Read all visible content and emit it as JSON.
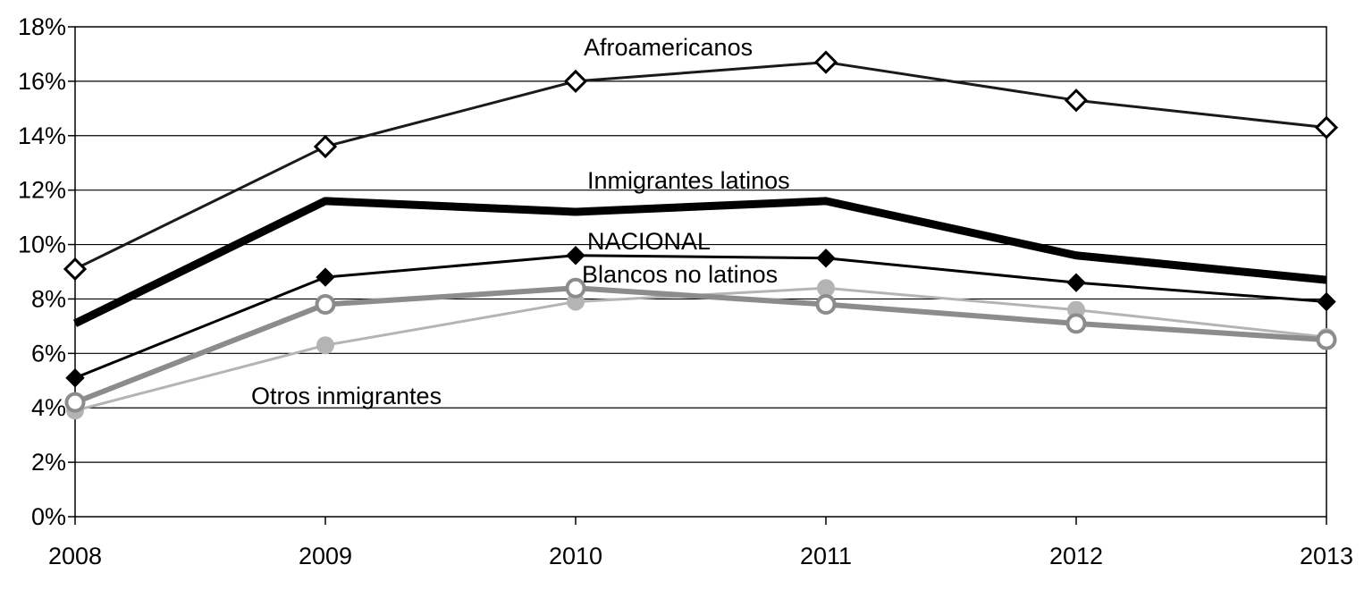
{
  "chart_data": {
    "type": "line",
    "title": "",
    "xlabel": "",
    "ylabel": "",
    "x": [
      "2008",
      "2009",
      "2010",
      "2011",
      "2012",
      "2013"
    ],
    "ylim": [
      0,
      18
    ],
    "yticks": [
      0,
      2,
      4,
      6,
      8,
      10,
      12,
      14,
      16,
      18
    ],
    "ytick_labels": [
      "0%",
      "2%",
      "4%",
      "6%",
      "8%",
      "10%",
      "12%",
      "14%",
      "16%",
      "18%"
    ],
    "grid": "horizontal",
    "legend": "inline labels",
    "series": [
      {
        "name": "Afroamericanos",
        "values": [
          9.1,
          13.6,
          16.0,
          16.7,
          15.3,
          14.3
        ],
        "color": "#1a1a1a",
        "marker": "open-diamond",
        "line": "thin"
      },
      {
        "name": "Inmigrantes latinos",
        "values": [
          7.1,
          11.6,
          11.2,
          11.6,
          9.6,
          8.7
        ],
        "color": "#000000",
        "marker": "none",
        "line": "thick"
      },
      {
        "name": "NACIONAL",
        "values": [
          5.1,
          8.8,
          9.6,
          9.5,
          8.6,
          7.9
        ],
        "color": "#000000",
        "marker": "filled-diamond",
        "line": "thin"
      },
      {
        "name": "Blancos no latinos",
        "values": [
          4.2,
          7.8,
          8.4,
          7.8,
          7.1,
          6.5
        ],
        "color": "#8c8c8c",
        "marker": "open-circle",
        "line": "medium"
      },
      {
        "name": "Otros inmigrantes",
        "values": [
          3.9,
          6.3,
          7.9,
          8.4,
          7.6,
          6.6
        ],
        "color": "#b4b4b4",
        "marker": "filled-circle",
        "line": "thin"
      }
    ]
  }
}
